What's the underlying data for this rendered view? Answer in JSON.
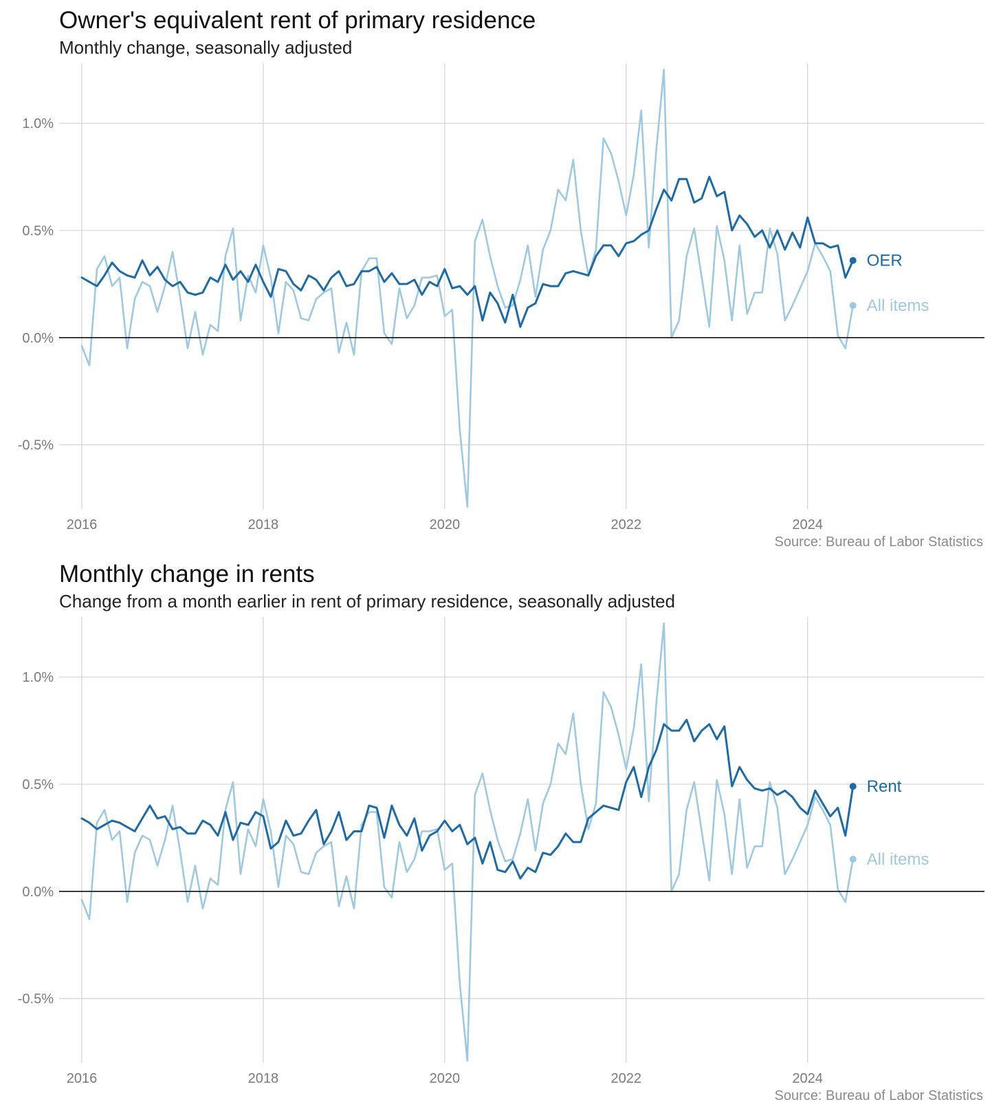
{
  "chart_data": [
    {
      "type": "line",
      "title": "Owner's equivalent rent of primary residence",
      "subtitle": "Monthly change, seasonally adjusted",
      "source": "Source: Bureau of Labor Statistics",
      "x_tick_labels": [
        "2016",
        "2018",
        "2020",
        "2022",
        "2024"
      ],
      "y_tick_labels": [
        "1.0%",
        "0.5%",
        "0.0%",
        "-0.5%"
      ],
      "y_ticks": [
        1.0,
        0.5,
        0.0,
        -0.5
      ],
      "x_ticks": [
        2016,
        2018,
        2020,
        2022,
        2024
      ],
      "xlim": [
        2015.75,
        2025.95
      ],
      "ylim": [
        -0.8,
        1.28
      ],
      "zero_line": 0,
      "grid": true,
      "x_unit": "year",
      "x_start": "2016-01",
      "x_interval": "monthly",
      "series": [
        {
          "name": "OER",
          "label": "OER",
          "color": "#1c6ba8",
          "emphasis": "primary",
          "values": [
            0.28,
            0.26,
            0.24,
            0.29,
            0.35,
            0.31,
            0.29,
            0.28,
            0.36,
            0.29,
            0.33,
            0.27,
            0.24,
            0.26,
            0.21,
            0.2,
            0.21,
            0.28,
            0.26,
            0.34,
            0.27,
            0.31,
            0.26,
            0.34,
            0.26,
            0.19,
            0.32,
            0.31,
            0.25,
            0.22,
            0.29,
            0.27,
            0.22,
            0.28,
            0.31,
            0.24,
            0.25,
            0.31,
            0.31,
            0.33,
            0.26,
            0.3,
            0.25,
            0.25,
            0.27,
            0.2,
            0.26,
            0.24,
            0.32,
            0.23,
            0.24,
            0.2,
            0.24,
            0.08,
            0.21,
            0.16,
            0.07,
            0.2,
            0.05,
            0.14,
            0.16,
            0.25,
            0.24,
            0.24,
            0.3,
            0.31,
            0.3,
            0.29,
            0.38,
            0.43,
            0.43,
            0.38,
            0.44,
            0.45,
            0.48,
            0.5,
            0.6,
            0.69,
            0.64,
            0.74,
            0.74,
            0.63,
            0.65,
            0.75,
            0.66,
            0.68,
            0.5,
            0.57,
            0.53,
            0.47,
            0.5,
            0.42,
            0.5,
            0.41,
            0.49,
            0.42,
            0.56,
            0.44,
            0.44,
            0.42,
            0.43,
            0.28,
            0.36
          ]
        },
        {
          "name": "All items",
          "label": "All items",
          "color": "#9ec9e2",
          "emphasis": "secondary",
          "values": [
            -0.04,
            -0.13,
            0.32,
            0.38,
            0.24,
            0.28,
            -0.05,
            0.18,
            0.26,
            0.24,
            0.12,
            0.24,
            0.4,
            0.19,
            -0.05,
            0.12,
            -0.08,
            0.06,
            0.03,
            0.38,
            0.51,
            0.08,
            0.29,
            0.21,
            0.43,
            0.28,
            0.02,
            0.26,
            0.22,
            0.09,
            0.08,
            0.18,
            0.21,
            0.23,
            -0.07,
            0.07,
            -0.08,
            0.31,
            0.37,
            0.37,
            0.02,
            -0.03,
            0.23,
            0.09,
            0.15,
            0.28,
            0.28,
            0.29,
            0.1,
            0.13,
            -0.43,
            -0.79,
            0.45,
            0.55,
            0.38,
            0.24,
            0.14,
            0.15,
            0.27,
            0.43,
            0.19,
            0.41,
            0.5,
            0.69,
            0.64,
            0.83,
            0.5,
            0.29,
            0.41,
            0.93,
            0.86,
            0.73,
            0.57,
            0.76,
            1.06,
            0.42,
            0.88,
            1.25,
            0.0,
            0.08,
            0.38,
            0.51,
            0.28,
            0.05,
            0.52,
            0.36,
            0.08,
            0.43,
            0.11,
            0.21,
            0.21,
            0.51,
            0.39,
            0.08,
            0.15,
            0.23,
            0.31,
            0.44,
            0.38,
            0.31,
            0.01,
            -0.05,
            0.15
          ]
        }
      ]
    },
    {
      "type": "line",
      "title": "Monthly change in rents",
      "subtitle": "Change from a month earlier in rent of primary residence, seasonally adjusted",
      "source": "Source: Bureau of Labor Statistics",
      "x_tick_labels": [
        "2016",
        "2018",
        "2020",
        "2022",
        "2024"
      ],
      "y_tick_labels": [
        "1.0%",
        "0.5%",
        "0.0%",
        "-0.5%"
      ],
      "y_ticks": [
        1.0,
        0.5,
        0.0,
        -0.5
      ],
      "x_ticks": [
        2016,
        2018,
        2020,
        2022,
        2024
      ],
      "xlim": [
        2015.75,
        2025.95
      ],
      "ylim": [
        -0.8,
        1.28
      ],
      "zero_line": 0,
      "grid": true,
      "x_unit": "year",
      "x_start": "2016-01",
      "x_interval": "monthly",
      "series": [
        {
          "name": "Rent",
          "label": "Rent",
          "color": "#1c6ba8",
          "emphasis": "primary",
          "values": [
            0.34,
            0.32,
            0.29,
            0.31,
            0.33,
            0.32,
            0.3,
            0.28,
            0.34,
            0.4,
            0.34,
            0.35,
            0.29,
            0.3,
            0.27,
            0.27,
            0.33,
            0.31,
            0.26,
            0.37,
            0.24,
            0.32,
            0.31,
            0.37,
            0.35,
            0.2,
            0.23,
            0.33,
            0.26,
            0.27,
            0.33,
            0.38,
            0.22,
            0.28,
            0.37,
            0.24,
            0.28,
            0.28,
            0.4,
            0.39,
            0.25,
            0.4,
            0.31,
            0.26,
            0.34,
            0.19,
            0.26,
            0.28,
            0.33,
            0.28,
            0.31,
            0.22,
            0.25,
            0.13,
            0.23,
            0.1,
            0.09,
            0.14,
            0.06,
            0.11,
            0.09,
            0.18,
            0.17,
            0.21,
            0.27,
            0.23,
            0.23,
            0.34,
            0.37,
            0.4,
            0.39,
            0.38,
            0.51,
            0.58,
            0.44,
            0.58,
            0.66,
            0.78,
            0.75,
            0.75,
            0.8,
            0.7,
            0.75,
            0.78,
            0.71,
            0.77,
            0.49,
            0.58,
            0.52,
            0.48,
            0.47,
            0.48,
            0.45,
            0.47,
            0.44,
            0.39,
            0.36,
            0.47,
            0.41,
            0.35,
            0.39,
            0.26,
            0.49
          ]
        },
        {
          "name": "All items",
          "label": "All items",
          "color": "#9ec9e2",
          "emphasis": "secondary",
          "values": [
            -0.04,
            -0.13,
            0.32,
            0.38,
            0.24,
            0.28,
            -0.05,
            0.18,
            0.26,
            0.24,
            0.12,
            0.24,
            0.4,
            0.19,
            -0.05,
            0.12,
            -0.08,
            0.06,
            0.03,
            0.38,
            0.51,
            0.08,
            0.29,
            0.21,
            0.43,
            0.28,
            0.02,
            0.26,
            0.22,
            0.09,
            0.08,
            0.18,
            0.21,
            0.23,
            -0.07,
            0.07,
            -0.08,
            0.31,
            0.37,
            0.37,
            0.02,
            -0.03,
            0.23,
            0.09,
            0.15,
            0.28,
            0.28,
            0.29,
            0.1,
            0.13,
            -0.43,
            -0.79,
            0.45,
            0.55,
            0.38,
            0.24,
            0.14,
            0.15,
            0.27,
            0.43,
            0.19,
            0.41,
            0.5,
            0.69,
            0.64,
            0.83,
            0.5,
            0.29,
            0.41,
            0.93,
            0.86,
            0.73,
            0.57,
            0.76,
            1.06,
            0.42,
            0.88,
            1.25,
            0.0,
            0.08,
            0.38,
            0.51,
            0.28,
            0.05,
            0.52,
            0.36,
            0.08,
            0.43,
            0.11,
            0.21,
            0.21,
            0.51,
            0.39,
            0.08,
            0.15,
            0.23,
            0.31,
            0.44,
            0.38,
            0.31,
            0.01,
            -0.05,
            0.15
          ]
        }
      ]
    }
  ]
}
